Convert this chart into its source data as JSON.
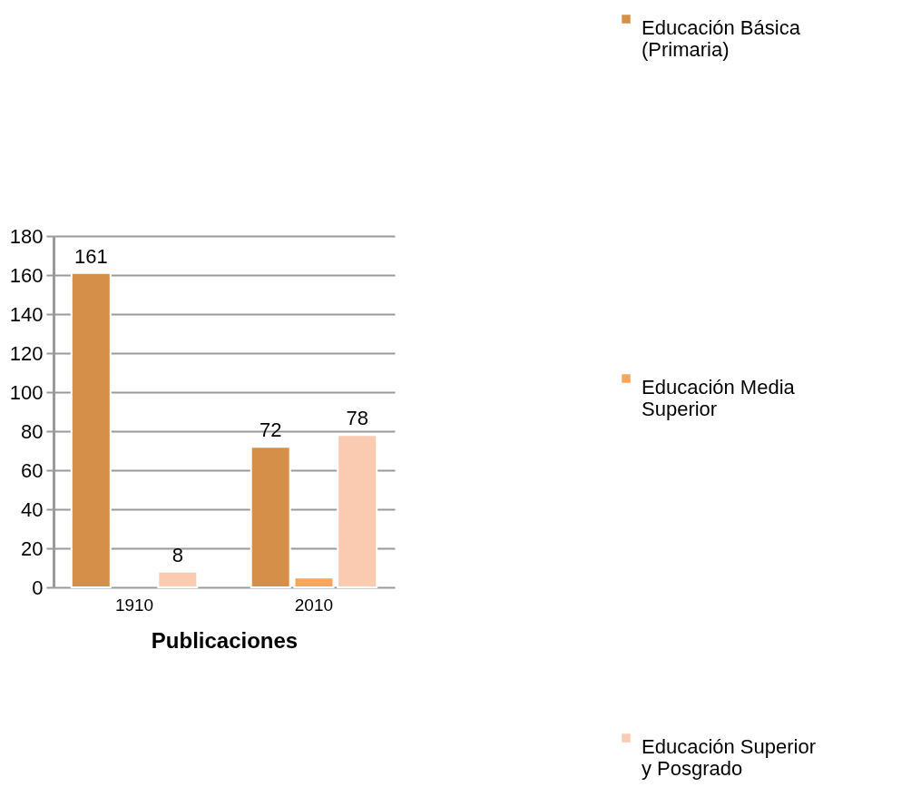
{
  "chart_data": {
    "type": "bar",
    "xlabel": "Publicaciones",
    "categories": [
      "1910",
      "2010"
    ],
    "series": [
      {
        "name": "Educación Básica (Primaria)",
        "color": "#d58f48",
        "values": [
          161,
          72
        ],
        "value_labels": [
          "161",
          "72"
        ]
      },
      {
        "name": "Educación Media Superior",
        "color": "#f9a65a",
        "values": [
          null,
          5
        ],
        "value_labels": [
          null,
          null
        ]
      },
      {
        "name": "Educación Superior y Posgrado",
        "color": "#fbcbb1",
        "values": [
          8,
          78
        ],
        "value_labels": [
          "8",
          "78"
        ]
      }
    ],
    "ylim": [
      0,
      180
    ],
    "yticks": [
      0,
      20,
      40,
      60,
      80,
      100,
      120,
      140,
      160,
      180
    ],
    "grid": "y",
    "legend": "right"
  }
}
